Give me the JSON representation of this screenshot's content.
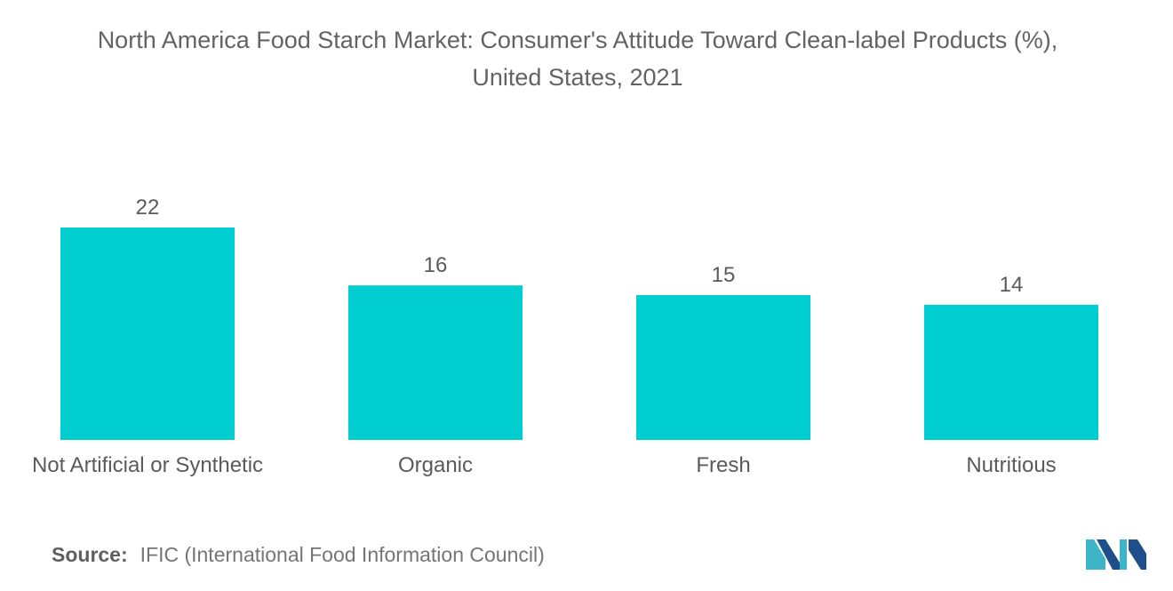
{
  "title_line1": "North America Food Starch Market: Consumer's Attitude Toward Clean-label Products (%),",
  "title_line2": "United States, 2021",
  "source_label": "Source:",
  "source_text": "IFIC (International Food Information Council)",
  "colors": {
    "bar": "#00CED1",
    "label": "#5a5a5a",
    "logo_dark": "#1f4e8c",
    "logo_light": "#3db5c6"
  },
  "logo_icon": "mordor-intelligence-logo-icon",
  "chart_data": {
    "type": "bar",
    "title": "North America Food Starch Market: Consumer's Attitude Toward Clean-label Products (%), United States, 2021",
    "categories": [
      "Not Artificial or Synthetic",
      "Organic",
      "Fresh",
      "Nutritious"
    ],
    "values": [
      22,
      16,
      15,
      14
    ],
    "xlabel": "",
    "ylabel": "",
    "ylim": [
      0,
      22
    ],
    "grid": false,
    "legend": "none",
    "data_labels": true
  }
}
